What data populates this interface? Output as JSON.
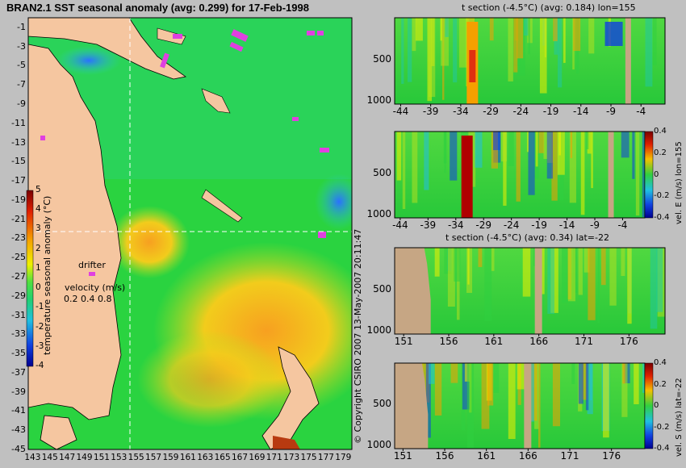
{
  "chart_data": [
    {
      "type": "heatmap",
      "title": "BRAN2.1 SST seasonal anomaly (avg: 0.299) for 17-Feb-1998",
      "x_ticks": [
        "143",
        "145",
        "147",
        "149",
        "151",
        "153",
        "155",
        "157",
        "159",
        "161",
        "163",
        "165",
        "167",
        "169",
        "171",
        "173",
        "175",
        "177",
        "179"
      ],
      "y_ticks": [
        "-1",
        "-3",
        "-5",
        "-7",
        "-9",
        "-11",
        "-13",
        "-15",
        "-17",
        "-19",
        "-21",
        "-23",
        "-25",
        "-27",
        "-29",
        "-31",
        "-33",
        "-35",
        "-37",
        "-39",
        "-41",
        "-43",
        "-45"
      ],
      "xlim": [
        142.5,
        180
      ],
      "ylim": [
        -45,
        0
      ],
      "crosshair": {
        "lon": 155,
        "lat": -22
      },
      "colorbar": {
        "label": "temperature seasonal anomaly (°C)",
        "ticks": [
          "5",
          "4",
          "3",
          "2",
          "1",
          "0",
          "-1",
          "-2",
          "-3",
          "-4"
        ],
        "range": [
          -4,
          5
        ]
      },
      "legend": {
        "drifter_label": "drifter",
        "velocity_label": "velocity (m/s)",
        "velocity_values": [
          "0.2",
          "0.4",
          "0.8"
        ]
      }
    },
    {
      "type": "heatmap",
      "title": "t section (-4.5°C) (avg: 0.184) lon=155",
      "x_ticks": [
        "-44",
        "-39",
        "-34",
        "-29",
        "-24",
        "-19",
        "-14",
        "-9",
        "-4"
      ],
      "y_ticks": [
        "500",
        "1000"
      ],
      "xlim": [
        -45,
        0
      ],
      "ylim": [
        1050,
        0
      ]
    },
    {
      "type": "heatmap",
      "title": "",
      "x_ticks": [
        "-44",
        "-39",
        "-34",
        "-29",
        "-24",
        "-19",
        "-14",
        "-9",
        "-4"
      ],
      "y_ticks": [
        "500",
        "1000"
      ],
      "xlim": [
        -45,
        0
      ],
      "ylim": [
        1050,
        0
      ],
      "colorbar": {
        "label": "vel. E (m/s) lon=155",
        "ticks": [
          "0.4",
          "0.2",
          "0",
          "-0.2",
          "-0.4"
        ],
        "range": [
          -0.4,
          0.4
        ]
      }
    },
    {
      "type": "heatmap",
      "title": "t section (-4.5°C) (avg: 0.34) lat=-22",
      "x_ticks": [
        "151",
        "156",
        "161",
        "166",
        "171",
        "176"
      ],
      "y_ticks": [
        "500",
        "1000"
      ],
      "xlim": [
        150,
        180
      ],
      "ylim": [
        1050,
        0
      ]
    },
    {
      "type": "heatmap",
      "title": "",
      "x_ticks": [
        "151",
        "156",
        "161",
        "166",
        "171",
        "176"
      ],
      "y_ticks": [
        "500",
        "1000"
      ],
      "xlim": [
        150,
        180
      ],
      "ylim": [
        1050,
        0
      ],
      "colorbar": {
        "label": "vel. S (m/s) lat=-22",
        "ticks": [
          "0.4",
          "0.2",
          "0",
          "-0.2",
          "-0.4"
        ],
        "range": [
          -0.4,
          0.4
        ]
      }
    }
  ],
  "copyright": "© Copyright CSIRO 2007  13-May-2007 20:11:47",
  "colors": {
    "ocean_green": "#2ad340",
    "warm": "#f2c21c",
    "land": "#f5c6a0",
    "section_land": "#c6a684",
    "drifter": "#e040e0"
  }
}
